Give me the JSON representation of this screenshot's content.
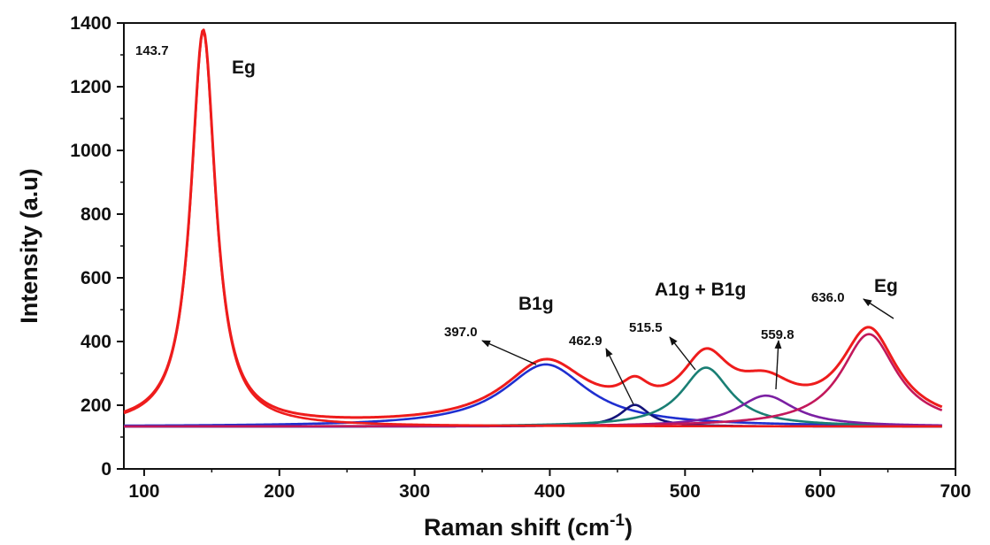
{
  "chart_data": {
    "type": "line",
    "xlabel": "Raman shift (cm",
    "xlabel_sup": "-1",
    "xlabel_end": ")",
    "ylabel": "Intensity (a.u)",
    "xlim": [
      85,
      700
    ],
    "ylim": [
      0,
      1400
    ],
    "x_ticks": [
      100,
      200,
      300,
      400,
      500,
      600,
      700
    ],
    "y_ticks": [
      0,
      200,
      400,
      600,
      800,
      1000,
      1200,
      1400
    ],
    "grid": false,
    "baseline": 133,
    "series": [
      {
        "color": "#1f2fd0",
        "peak": {
          "center": 397.0,
          "height": 195,
          "hwhm": 38
        }
      },
      {
        "color": "#14147a",
        "peak": {
          "center": 462.9,
          "height": 68,
          "hwhm": 13
        }
      },
      {
        "color": "#1a7f74",
        "peak": {
          "center": 515.5,
          "height": 185,
          "hwhm": 22
        }
      },
      {
        "color": "#7b1fa2",
        "peak": {
          "center": 559.8,
          "height": 97,
          "hwhm": 26
        }
      },
      {
        "color": "#c2185b",
        "peak": {
          "center": 636.0,
          "height": 290,
          "hwhm": 25
        }
      },
      {
        "color": "#ee1c1c",
        "peak": {
          "center": 143.7,
          "height": 1240,
          "hwhm": 11
        }
      },
      {
        "color": "#ee1c1c",
        "composite": true
      }
    ],
    "annotations": [
      {
        "text": "143.7",
        "size": "small",
        "x": 143.7
      },
      {
        "text": "Eg",
        "size": "big",
        "x": 143.7
      },
      {
        "text": "B1g",
        "size": "big",
        "x": 397.0
      },
      {
        "text": "397.0",
        "size": "small",
        "x": 397.0
      },
      {
        "text": "462.9",
        "size": "small",
        "x": 462.9
      },
      {
        "text": "515.5",
        "size": "small",
        "x": 515.5
      },
      {
        "text": "A1g + B1g",
        "size": "big",
        "x": 515.5
      },
      {
        "text": "559.8",
        "size": "small",
        "x": 559.8
      },
      {
        "text": "636.0",
        "size": "small",
        "x": 636.0
      },
      {
        "text": "Eg",
        "size": "big",
        "x": 636.0
      }
    ]
  }
}
